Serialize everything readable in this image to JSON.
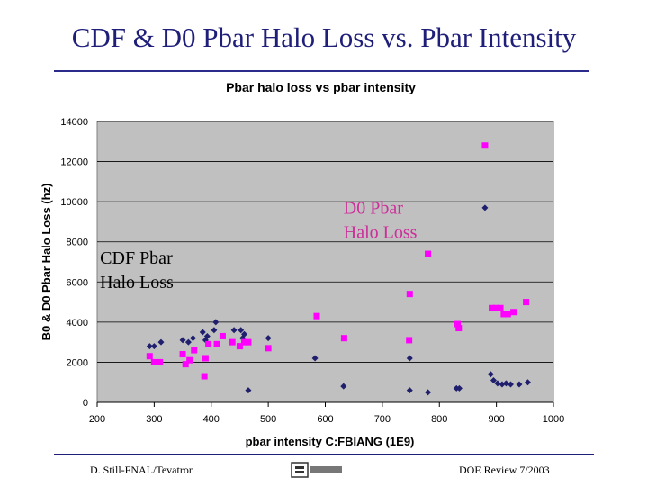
{
  "slide": {
    "title": "CDF & D0 Pbar Halo Loss vs. Pbar Intensity",
    "footer_left": "D. Still-FNAL/Tevatron",
    "footer_right": "DOE Review 7/2003",
    "logo_text": "Fermilab"
  },
  "chart_data": {
    "type": "scatter",
    "title": "Pbar halo loss vs pbar intensity",
    "xlabel": "pbar intensity C:FBIANG (1E9)",
    "ylabel": "B0 & D0 Pbar Halo Loss (hz)",
    "xlim": [
      200,
      1000
    ],
    "ylim": [
      0,
      14000
    ],
    "xticks": [
      200,
      300,
      400,
      500,
      600,
      700,
      800,
      900,
      1000
    ],
    "yticks": [
      0,
      2000,
      4000,
      6000,
      8000,
      10000,
      12000,
      14000
    ],
    "grid": "horizontal",
    "plot_background": "#c0c0c0",
    "annotations": [
      {
        "text_lines": [
          "CDF Pbar",
          "Halo Loss"
        ],
        "x": 205,
        "y": 6900,
        "color": "#000000"
      },
      {
        "text_lines": [
          "D0 Pbar",
          "Halo Loss"
        ],
        "x": 632,
        "y": 9400,
        "color": "#cc2f9a"
      }
    ],
    "series": [
      {
        "marker": "diamond",
        "color": "#1f1f6e",
        "points": [
          [
            292,
            2800
          ],
          [
            300,
            2800
          ],
          [
            312,
            3000
          ],
          [
            350,
            3100
          ],
          [
            360,
            3000
          ],
          [
            368,
            3200
          ],
          [
            385,
            3500
          ],
          [
            393,
            3300
          ],
          [
            405,
            3600
          ],
          [
            408,
            4000
          ],
          [
            390,
            3100
          ],
          [
            440,
            3600
          ],
          [
            452,
            3600
          ],
          [
            455,
            3200
          ],
          [
            458,
            3400
          ],
          [
            465,
            600
          ],
          [
            500,
            3200
          ],
          [
            582,
            2200
          ],
          [
            632,
            800
          ],
          [
            748,
            2200
          ],
          [
            748,
            600
          ],
          [
            780,
            500
          ],
          [
            830,
            700
          ],
          [
            835,
            700
          ],
          [
            880,
            9700
          ],
          [
            890,
            1400
          ],
          [
            895,
            1100
          ],
          [
            902,
            950
          ],
          [
            910,
            900
          ],
          [
            917,
            950
          ],
          [
            925,
            900
          ],
          [
            940,
            900
          ],
          [
            955,
            1000
          ]
        ]
      },
      {
        "marker": "square",
        "color": "#ff00ff",
        "points": [
          [
            292,
            2300
          ],
          [
            300,
            2000
          ],
          [
            310,
            2000
          ],
          [
            350,
            2400
          ],
          [
            355,
            1900
          ],
          [
            362,
            2100
          ],
          [
            370,
            2600
          ],
          [
            388,
            1300
          ],
          [
            390,
            2200
          ],
          [
            395,
            2900
          ],
          [
            410,
            2900
          ],
          [
            420,
            3300
          ],
          [
            437,
            3000
          ],
          [
            450,
            2800
          ],
          [
            458,
            3000
          ],
          [
            465,
            3000
          ],
          [
            500,
            2700
          ],
          [
            585,
            4300
          ],
          [
            633,
            3200
          ],
          [
            747,
            3100
          ],
          [
            748,
            5400
          ],
          [
            780,
            7400
          ],
          [
            832,
            3900
          ],
          [
            834,
            3700
          ],
          [
            880,
            12800
          ],
          [
            892,
            4700
          ],
          [
            900,
            4700
          ],
          [
            907,
            4700
          ],
          [
            913,
            4400
          ],
          [
            920,
            4400
          ],
          [
            930,
            4500
          ],
          [
            952,
            5000
          ]
        ]
      }
    ]
  }
}
